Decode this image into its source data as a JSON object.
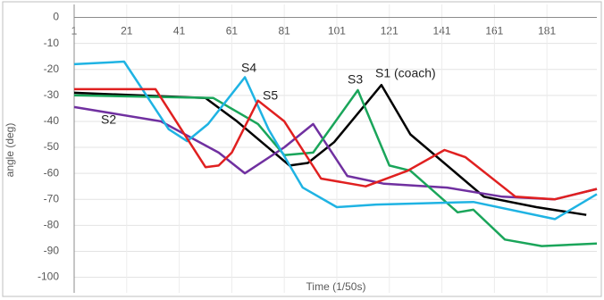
{
  "chart_data": {
    "type": "line",
    "xlabel": "Time (1/50s)",
    "ylabel": "angle (deg)",
    "xlim": [
      1,
      200
    ],
    "ylim": [
      -106,
      5
    ],
    "xticks": [
      1,
      21,
      41,
      61,
      81,
      101,
      121,
      141,
      161,
      181
    ],
    "yticks": [
      0,
      -10,
      -20,
      -30,
      -40,
      -50,
      -60,
      -70,
      -80,
      -90,
      -100
    ],
    "grid": true,
    "annotations": [
      "S1 (coach)",
      "S2",
      "S3",
      "S4",
      "S5"
    ],
    "series": [
      {
        "color": "#000000",
        "x": [
          1,
          51,
          63,
          83,
          90,
          100,
          118,
          129,
          157,
          177,
          196
        ],
        "values": [
          -29,
          -31,
          -40,
          -57,
          -56,
          -48,
          -26,
          -45,
          -69,
          -73,
          -76
        ]
      },
      {
        "color": "#7030a0",
        "x": [
          1,
          34,
          56,
          66,
          81,
          92,
          105,
          119,
          143,
          164,
          184,
          200
        ],
        "values": [
          -34.5,
          -40,
          -52,
          -60,
          -50,
          -41,
          -61,
          -64,
          -65.5,
          -69,
          -70,
          -66
        ]
      },
      {
        "color": "#1aa55a",
        "x": [
          1,
          54,
          71,
          81,
          92,
          109,
          121,
          129,
          147,
          153,
          165,
          179,
          200
        ],
        "values": [
          -30,
          -31,
          -41,
          -53,
          -52,
          -28,
          -57,
          -59,
          -75,
          -74,
          -85.5,
          -88,
          -87
        ]
      },
      {
        "color": "#1fb3e3",
        "x": [
          1,
          20,
          37,
          44,
          52,
          66,
          75,
          88,
          101,
          116,
          153,
          184,
          200
        ],
        "values": [
          -18,
          -17,
          -43,
          -47.6,
          -41,
          -23,
          -43,
          -65.5,
          -73,
          -72,
          -71,
          -77.6,
          -68
        ]
      },
      {
        "color": "#e02020",
        "x": [
          1,
          32,
          51,
          56,
          61,
          71,
          81,
          95,
          112,
          128,
          142,
          150,
          169,
          184,
          200
        ],
        "values": [
          -27.6,
          -27.6,
          -57.6,
          -57,
          -52,
          -32,
          -40,
          -62,
          -65,
          -59,
          -51,
          -53.8,
          -69,
          -70,
          -66
        ]
      }
    ]
  }
}
